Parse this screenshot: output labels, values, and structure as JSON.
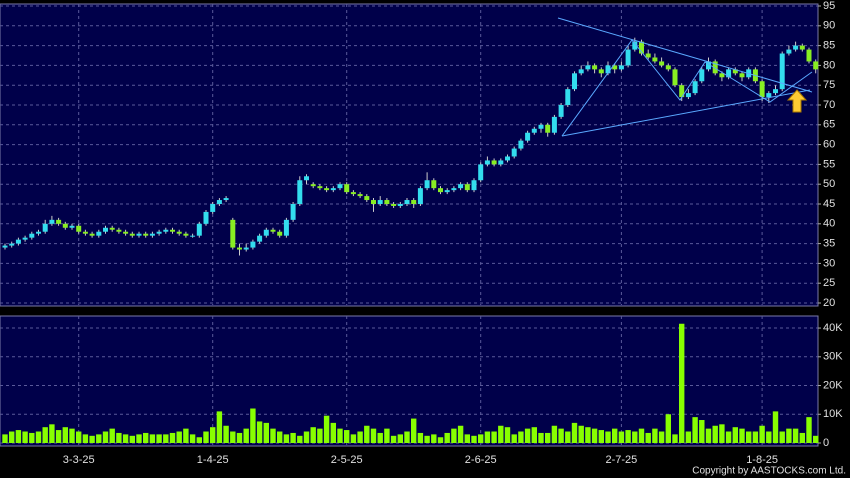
{
  "chart_data": [
    {
      "type": "candlestick",
      "categories": [
        null,
        null,
        null,
        null,
        null,
        null,
        null,
        null,
        null,
        null,
        null,
        "3-3-25",
        null,
        null,
        null,
        null,
        null,
        null,
        null,
        null,
        null,
        null,
        null,
        null,
        null,
        null,
        null,
        null,
        null,
        null,
        null,
        "1-4-25",
        null,
        null,
        null,
        null,
        null,
        null,
        null,
        null,
        null,
        null,
        null,
        null,
        null,
        null,
        null,
        null,
        null,
        null,
        null,
        "2-5-25",
        null,
        null,
        null,
        null,
        null,
        null,
        null,
        null,
        null,
        null,
        null,
        null,
        null,
        null,
        null,
        null,
        null,
        null,
        null,
        "2-6-25",
        null,
        null,
        null,
        null,
        null,
        null,
        null,
        null,
        null,
        null,
        null,
        null,
        null,
        null,
        null,
        null,
        null,
        null,
        null,
        null,
        "2-7-25",
        null,
        null,
        null,
        null,
        null,
        null,
        null,
        null,
        null,
        null,
        null,
        null,
        null,
        null,
        null,
        null,
        null,
        null,
        null,
        null,
        "1-8-25",
        null,
        null,
        null,
        null,
        null,
        null,
        null,
        null
      ],
      "ohlc": [
        [
          34,
          35,
          33.5,
          34.5
        ],
        [
          34.5,
          35.5,
          34,
          35
        ],
        [
          35,
          36.5,
          34.5,
          36
        ],
        [
          36,
          37,
          35.5,
          36.5
        ],
        [
          36.5,
          38,
          36,
          37.5
        ],
        [
          37.5,
          38.5,
          37,
          38
        ],
        [
          38,
          41,
          37.5,
          40
        ],
        [
          40,
          42,
          39.5,
          41
        ],
        [
          41,
          41.5,
          39.5,
          40
        ],
        [
          40,
          40.5,
          38.5,
          39
        ],
        [
          39,
          40,
          38.5,
          39.5
        ],
        [
          39.5,
          40,
          37.5,
          38
        ],
        [
          38,
          38.5,
          37,
          37.5
        ],
        [
          37.5,
          38,
          36.5,
          37
        ],
        [
          37,
          38.5,
          36.5,
          38
        ],
        [
          38,
          39.5,
          37.5,
          39
        ],
        [
          39,
          39.5,
          38,
          38.5
        ],
        [
          38.5,
          39,
          37.5,
          38
        ],
        [
          38,
          38.5,
          37,
          37.5
        ],
        [
          37.5,
          38,
          36.5,
          37
        ],
        [
          37,
          38,
          36.5,
          37.5
        ],
        [
          37.5,
          38,
          36.5,
          37
        ],
        [
          37,
          38,
          36.5,
          37.5
        ],
        [
          37.5,
          38.5,
          37,
          38
        ],
        [
          38,
          39,
          37.5,
          38.5
        ],
        [
          38.5,
          39,
          37.5,
          38
        ],
        [
          38,
          38.5,
          37,
          37.5
        ],
        [
          37.5,
          38,
          36.5,
          37
        ],
        [
          37,
          37.5,
          36.5,
          37
        ],
        [
          37,
          40.5,
          36.5,
          40
        ],
        [
          40,
          43.5,
          39.5,
          43
        ],
        [
          43,
          45.5,
          42.5,
          45
        ],
        [
          45,
          46.5,
          44.5,
          46
        ],
        [
          46,
          47,
          45.5,
          46.5
        ],
        [
          41,
          41.5,
          33.5,
          34
        ],
        [
          34,
          35,
          32,
          33.5
        ],
        [
          33.5,
          35,
          33,
          34
        ],
        [
          34,
          36,
          33.5,
          35.5
        ],
        [
          35.5,
          37.5,
          35,
          37
        ],
        [
          37,
          39,
          36.5,
          38.5
        ],
        [
          38.5,
          39,
          37.5,
          38
        ],
        [
          38,
          38.5,
          36.5,
          37
        ],
        [
          37,
          41.5,
          36.5,
          41
        ],
        [
          41,
          45.5,
          40.5,
          45
        ],
        [
          45,
          52,
          44.5,
          51
        ],
        [
          51,
          52.5,
          50,
          52
        ],
        [
          50,
          50.5,
          49,
          49.5
        ],
        [
          49.5,
          50,
          48.5,
          49
        ],
        [
          49,
          49.5,
          48,
          48.5
        ],
        [
          48.5,
          49.5,
          48,
          49
        ],
        [
          49,
          50.5,
          48.5,
          50
        ],
        [
          50,
          50.5,
          47.5,
          48
        ],
        [
          48,
          48.5,
          47,
          47.5
        ],
        [
          47.5,
          48,
          46.5,
          47
        ],
        [
          47,
          47.5,
          45.5,
          46
        ],
        [
          46,
          46.5,
          43,
          45
        ],
        [
          45,
          47,
          44.5,
          46
        ],
        [
          46,
          46.5,
          44.5,
          45
        ],
        [
          45,
          45.5,
          44,
          44.5
        ],
        [
          44.5,
          45.5,
          44,
          45
        ],
        [
          45,
          46.5,
          44.5,
          46
        ],
        [
          46,
          46.5,
          44,
          45
        ],
        [
          45,
          49.5,
          44.5,
          49
        ],
        [
          49,
          53,
          48.5,
          51
        ],
        [
          51,
          51.5,
          48.5,
          49
        ],
        [
          49,
          49.5,
          47.5,
          48
        ],
        [
          48,
          49,
          47.5,
          48.5
        ],
        [
          48.5,
          49.5,
          48,
          49
        ],
        [
          49,
          50.5,
          48.5,
          50
        ],
        [
          50,
          50.5,
          48,
          48.5
        ],
        [
          48.5,
          51.5,
          48,
          51
        ],
        [
          51,
          55.5,
          50.5,
          55
        ],
        [
          55,
          57,
          54.5,
          56
        ],
        [
          56,
          56.5,
          54.5,
          55
        ],
        [
          55,
          56.5,
          54.5,
          56
        ],
        [
          56,
          57.5,
          55.5,
          57
        ],
        [
          57,
          59.5,
          56.5,
          59
        ],
        [
          59,
          61.5,
          58.5,
          61
        ],
        [
          61,
          63.5,
          60.5,
          63
        ],
        [
          63,
          64.5,
          62.5,
          64
        ],
        [
          64,
          65.5,
          63,
          65
        ],
        [
          65,
          65.5,
          62,
          63
        ],
        [
          63,
          67.5,
          62.5,
          67
        ],
        [
          67,
          70.5,
          66.5,
          70
        ],
        [
          70,
          74.5,
          69.5,
          74
        ],
        [
          74,
          78.5,
          73.5,
          78
        ],
        [
          78,
          80,
          77.5,
          79
        ],
        [
          79,
          81,
          78.5,
          80
        ],
        [
          80,
          80.5,
          78,
          79
        ],
        [
          79,
          79.5,
          77,
          78
        ],
        [
          78,
          81,
          77.5,
          80
        ],
        [
          80,
          80.5,
          78,
          79
        ],
        [
          79,
          81,
          78.5,
          80
        ],
        [
          80,
          85,
          79.5,
          84
        ],
        [
          84,
          87,
          83.5,
          86
        ],
        [
          86,
          86.5,
          82.5,
          83
        ],
        [
          83,
          84,
          81.5,
          82
        ],
        [
          82,
          83,
          80.5,
          81
        ],
        [
          81,
          82,
          79.5,
          80
        ],
        [
          80,
          80.5,
          78.5,
          79
        ],
        [
          79,
          79.5,
          74.5,
          75
        ],
        [
          75,
          75.5,
          71,
          72
        ],
        [
          72,
          74,
          71.5,
          73
        ],
        [
          73,
          76.5,
          72.5,
          76
        ],
        [
          76,
          79.5,
          75.5,
          79
        ],
        [
          79,
          82,
          78.5,
          81
        ],
        [
          81,
          81.5,
          77.5,
          78
        ],
        [
          78,
          78.5,
          76,
          77
        ],
        [
          77,
          79.5,
          76.5,
          79
        ],
        [
          79,
          79.5,
          77.5,
          78
        ],
        [
          78,
          78.5,
          76,
          77
        ],
        [
          77,
          79.5,
          76.5,
          79
        ],
        [
          79,
          79.5,
          75.5,
          76
        ],
        [
          76,
          76.5,
          71,
          72
        ],
        [
          72,
          73.5,
          70.5,
          73
        ],
        [
          73,
          75,
          72.5,
          74
        ],
        [
          74,
          83.5,
          73.5,
          83
        ],
        [
          83,
          85,
          82.5,
          84
        ],
        [
          84,
          86,
          83.5,
          85
        ],
        [
          85,
          85.5,
          83.5,
          84
        ],
        [
          84,
          84.5,
          80.5,
          81
        ],
        [
          81,
          81.5,
          78,
          79
        ]
      ],
      "up_color": "#33ddee",
      "down_color": "#88ee22",
      "ylim": [
        20,
        95
      ],
      "yticks": [
        20,
        25,
        30,
        35,
        40,
        45,
        50,
        55,
        60,
        65,
        70,
        75,
        80,
        85,
        90,
        95
      ],
      "grid": true
    },
    {
      "type": "bar",
      "values": [
        3000,
        4000,
        4500,
        4000,
        3500,
        4000,
        5500,
        6500,
        4500,
        5500,
        5000,
        4000,
        3000,
        2500,
        3000,
        4000,
        5000,
        3500,
        3000,
        2500,
        3000,
        3500,
        3000,
        3000,
        3000,
        3500,
        4000,
        5000,
        3000,
        2000,
        4000,
        5500,
        11000,
        6000,
        4000,
        3500,
        5000,
        12000,
        7500,
        7000,
        5000,
        4000,
        3000,
        3500,
        2500,
        4000,
        5500,
        5000,
        9500,
        7000,
        5000,
        4500,
        3000,
        4000,
        6000,
        5000,
        3500,
        5000,
        2500,
        3000,
        4000,
        8500,
        3500,
        2500,
        3000,
        2000,
        3500,
        5000,
        6000,
        3000,
        2500,
        3000,
        4000,
        4000,
        6000,
        5500,
        3000,
        4000,
        5000,
        5500,
        3500,
        3500,
        6000,
        5000,
        4000,
        7000,
        6000,
        5500,
        5000,
        4500,
        4000,
        5000,
        4000,
        4500,
        4000,
        5000,
        3500,
        5000,
        4000,
        10000,
        3000,
        41500,
        4000,
        9000,
        8000,
        5000,
        6000,
        6500,
        4000,
        5500,
        5000,
        4000,
        4000,
        6000,
        4000,
        11000,
        4000,
        5000,
        5000,
        3500,
        9000,
        2500
      ],
      "color": "#88ff00",
      "ylim": [
        0,
        43500
      ],
      "yticks": [
        0,
        {
          "value": 10000,
          "label": "10K"
        },
        {
          "value": 20000,
          "label": "20K"
        },
        {
          "value": 30000,
          "label": "30K"
        },
        {
          "value": 40000,
          "label": "40K"
        }
      ],
      "grid": true
    }
  ],
  "copyright": "Copyright by AASTOCKS.com Ltd."
}
